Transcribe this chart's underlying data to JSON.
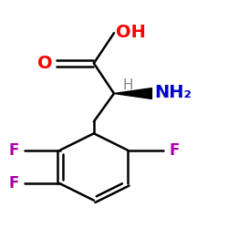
{
  "background_color": "#ffffff",
  "figsize": [
    2.5,
    2.5
  ],
  "dpi": 100,
  "colors": {
    "bond": "#000000",
    "O": "#ff0000",
    "N": "#0000cc",
    "F": "#aa00aa",
    "H_label": "#888888"
  },
  "labels": {
    "O": "O",
    "OH": "OH",
    "NH2": "NH₂",
    "H": "H",
    "F": "F"
  },
  "bond_lw": 1.8,
  "xlim": [
    0.05,
    0.95
  ],
  "ylim": [
    0.0,
    1.05
  ]
}
